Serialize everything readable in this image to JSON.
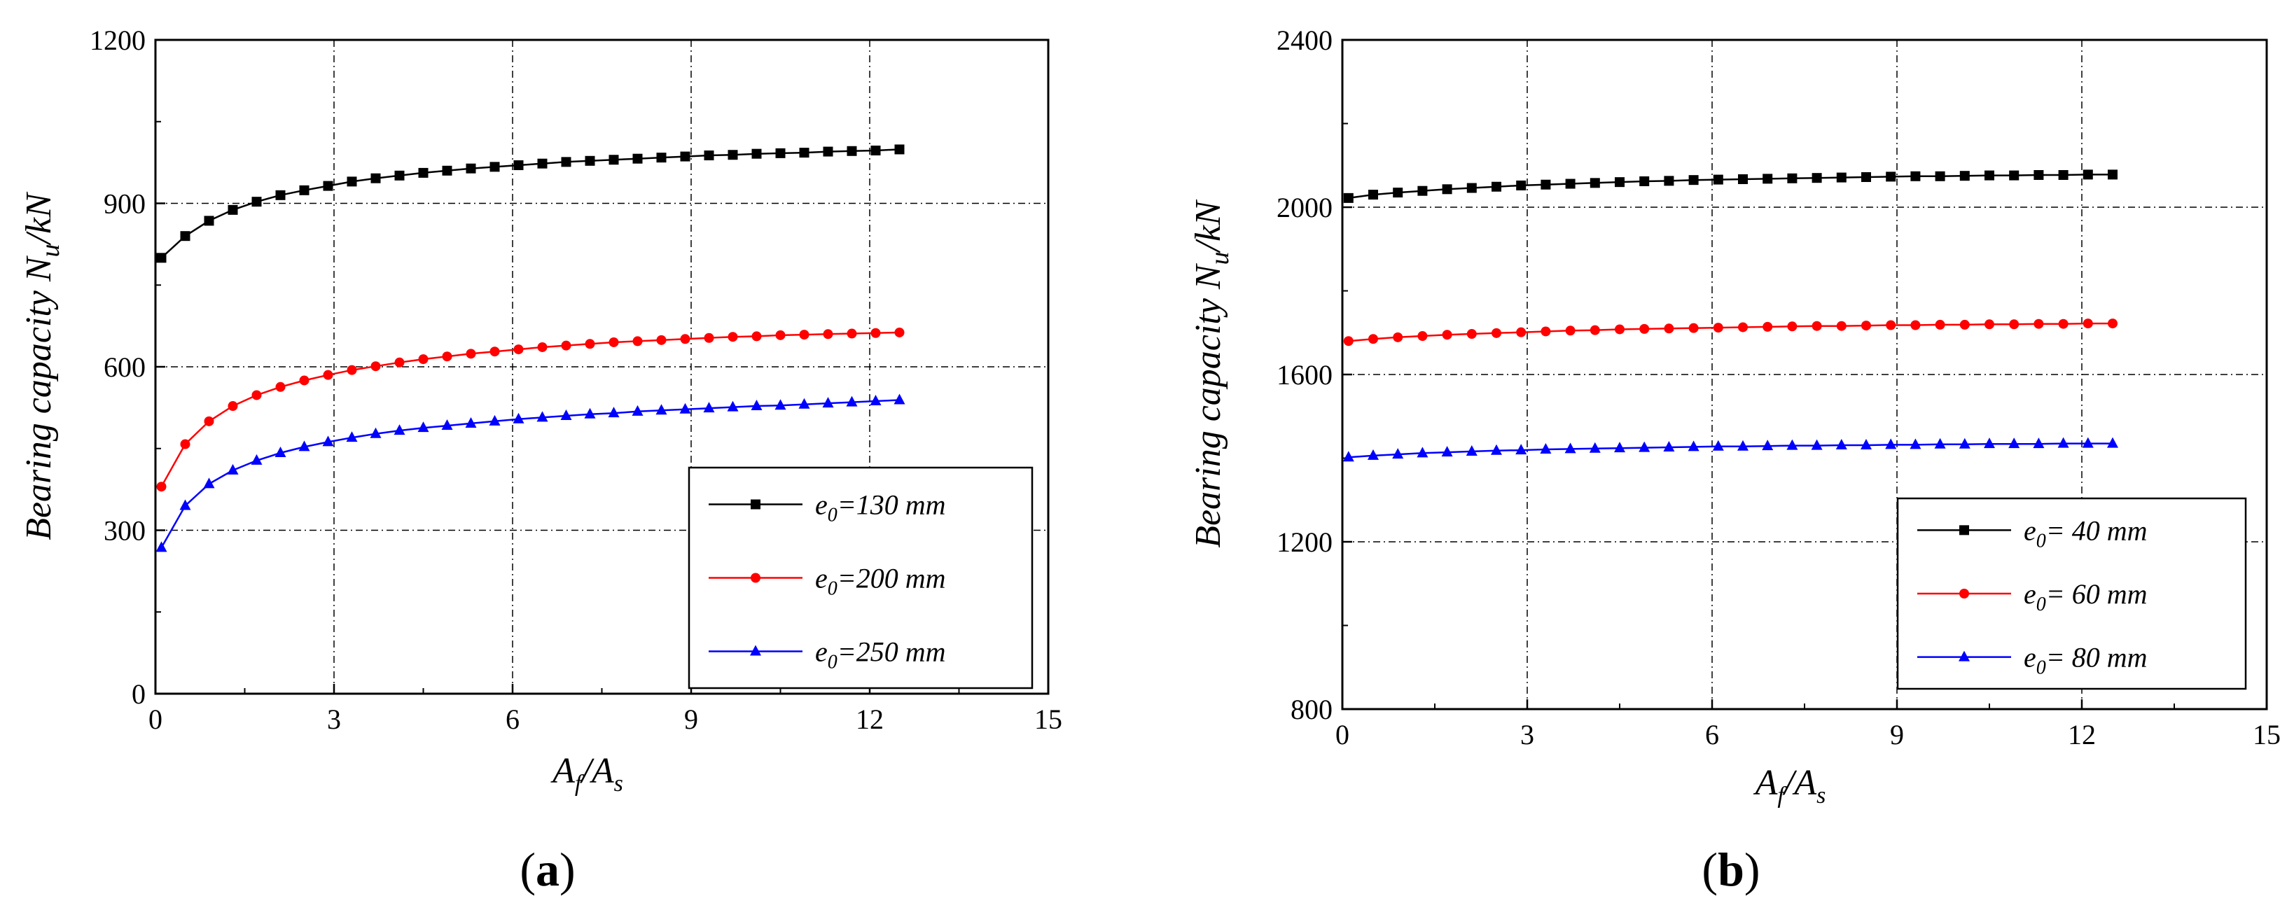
{
  "chart_data": [
    {
      "type": "line",
      "panel_label": "a",
      "xlabel": {
        "main": "A",
        "sub1": "f",
        "sep": "/A",
        "sub2": "s"
      },
      "ylabel": {
        "main": "Bearing capacity  N",
        "sub": "u",
        "unit": "/kN"
      },
      "xlim": [
        0,
        15
      ],
      "ylim": [
        0,
        1200
      ],
      "xticks": [
        0,
        3,
        6,
        9,
        12,
        15
      ],
      "yticks": [
        0,
        300,
        600,
        900,
        1200
      ],
      "grid": true,
      "legend_position": "bottom-right",
      "x": [
        0.1,
        0.5,
        0.9,
        1.3,
        1.7,
        2.1,
        2.5,
        2.9,
        3.3,
        3.7,
        4.1,
        4.5,
        4.9,
        5.3,
        5.7,
        6.1,
        6.5,
        6.9,
        7.3,
        7.7,
        8.1,
        8.5,
        8.9,
        9.3,
        9.7,
        10.1,
        10.5,
        10.9,
        11.3,
        11.7,
        12.1,
        12.5
      ],
      "series": [
        {
          "name": "e0=130 mm",
          "label_main": "e",
          "label_sub": "0",
          "label_rest": "=130 mm",
          "color": "#000000",
          "marker": "square",
          "values": [
            800,
            840,
            868,
            888,
            903,
            915,
            924,
            932,
            940,
            946,
            951,
            956,
            960,
            964,
            967,
            970,
            973,
            976,
            978,
            980,
            982,
            984,
            986,
            988,
            989,
            991,
            992,
            993,
            995,
            996,
            997,
            999
          ]
        },
        {
          "name": "e0=200 mm",
          "label_main": "e",
          "label_sub": "0",
          "label_rest": "=200 mm",
          "color": "#ff0000",
          "marker": "circle",
          "values": [
            380,
            458,
            500,
            528,
            548,
            563,
            575,
            585,
            594,
            601,
            608,
            614,
            619,
            624,
            628,
            632,
            636,
            639,
            642,
            645,
            647,
            649,
            651,
            653,
            655,
            656,
            658,
            659,
            660,
            661,
            662,
            663
          ]
        },
        {
          "name": "e0=250 mm",
          "label_main": "e",
          "label_sub": "0",
          "label_rest": "=250 mm",
          "color": "#0000ff",
          "marker": "triangle",
          "values": [
            268,
            345,
            385,
            410,
            428,
            442,
            453,
            462,
            470,
            477,
            483,
            488,
            492,
            496,
            500,
            504,
            507,
            510,
            513,
            515,
            518,
            520,
            522,
            524,
            526,
            528,
            529,
            531,
            533,
            535,
            537,
            539
          ]
        }
      ]
    },
    {
      "type": "line",
      "panel_label": "b",
      "xlabel": {
        "main": "A",
        "sub1": "f",
        "sep": "/A",
        "sub2": "s"
      },
      "ylabel": {
        "main": "Bearing capacity  N",
        "sub": "u",
        "unit": "/kN"
      },
      "xlim": [
        0,
        15
      ],
      "ylim": [
        800,
        2400
      ],
      "xticks": [
        0,
        3,
        6,
        9,
        12,
        15
      ],
      "yticks": [
        800,
        1200,
        1600,
        2000,
        2400
      ],
      "grid": true,
      "legend_position": "bottom-right",
      "x": [
        0.1,
        0.5,
        0.9,
        1.3,
        1.7,
        2.1,
        2.5,
        2.9,
        3.3,
        3.7,
        4.1,
        4.5,
        4.9,
        5.3,
        5.7,
        6.1,
        6.5,
        6.9,
        7.3,
        7.7,
        8.1,
        8.5,
        8.9,
        9.3,
        9.7,
        10.1,
        10.5,
        10.9,
        11.3,
        11.7,
        12.1,
        12.5
      ],
      "series": [
        {
          "name": "e0= 40 mm",
          "label_main": "e",
          "label_sub": "0",
          "label_rest": "= 40 mm",
          "color": "#000000",
          "marker": "square",
          "values": [
            2022,
            2030,
            2035,
            2039,
            2043,
            2046,
            2049,
            2052,
            2054,
            2056,
            2058,
            2060,
            2062,
            2063,
            2065,
            2066,
            2067,
            2068,
            2069,
            2070,
            2071,
            2072,
            2073,
            2074,
            2074,
            2075,
            2076,
            2076,
            2077,
            2077,
            2078,
            2078
          ]
        },
        {
          "name": "e0= 60 mm",
          "label_main": "e",
          "label_sub": "0",
          "label_rest": "= 60 mm",
          "color": "#ff0000",
          "marker": "circle",
          "values": [
            1680,
            1685,
            1689,
            1692,
            1695,
            1697,
            1699,
            1701,
            1703,
            1705,
            1706,
            1708,
            1709,
            1710,
            1711,
            1712,
            1713,
            1714,
            1715,
            1716,
            1716,
            1717,
            1718,
            1718,
            1719,
            1719,
            1720,
            1720,
            1721,
            1721,
            1722,
            1722
          ]
        },
        {
          "name": "e0= 80 mm",
          "label_main": "e",
          "label_sub": "0",
          "label_rest": "= 80 mm",
          "color": "#0000ff",
          "marker": "triangle",
          "values": [
            1402,
            1406,
            1409,
            1412,
            1414,
            1416,
            1418,
            1419,
            1421,
            1422,
            1423,
            1424,
            1425,
            1426,
            1427,
            1428,
            1428,
            1429,
            1430,
            1430,
            1431,
            1431,
            1432,
            1432,
            1433,
            1433,
            1434,
            1434,
            1434,
            1435,
            1435,
            1435
          ]
        }
      ]
    }
  ]
}
